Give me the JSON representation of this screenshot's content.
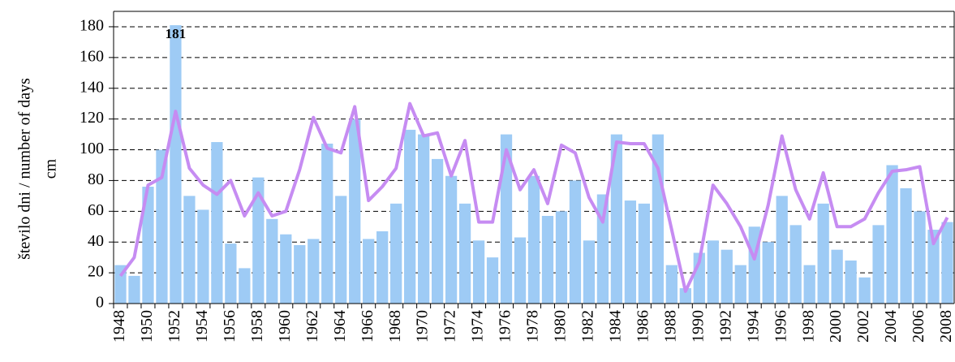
{
  "chart_data": {
    "type": "bar",
    "y_label": [
      "število dni / number of days",
      "cm"
    ],
    "categories": [
      "1948",
      null,
      "1950",
      null,
      "1952",
      null,
      "1954",
      null,
      "1956",
      null,
      "1958",
      null,
      "1960",
      null,
      "1962",
      null,
      "1964",
      null,
      "1966",
      null,
      "1968",
      null,
      "1970",
      null,
      "1972",
      null,
      "1974",
      null,
      "1976",
      null,
      "1978",
      null,
      "1980",
      null,
      "1982",
      null,
      "1984",
      null,
      "1986",
      null,
      "1988",
      null,
      "1990",
      null,
      "1992",
      null,
      "1994",
      null,
      "1996",
      null,
      "1998",
      null,
      "2000",
      null,
      "2002",
      null,
      "2004",
      null,
      "2006",
      null,
      "2008"
    ],
    "series": [
      {
        "type": "bar",
        "color": "#9ecbf5",
        "values": [
          25,
          18,
          76,
          100,
          181,
          70,
          61,
          105,
          39,
          23,
          82,
          55,
          45,
          38,
          42,
          104,
          70,
          120,
          42,
          47,
          65,
          113,
          110,
          94,
          83,
          65,
          41,
          30,
          110,
          43,
          83,
          57,
          60,
          80,
          41,
          71,
          110,
          67,
          65,
          110,
          25,
          10,
          33,
          41,
          35,
          25,
          50,
          40,
          70,
          51,
          25,
          65,
          35,
          28,
          17,
          51,
          90,
          75,
          60,
          48,
          53
        ],
        "value_labels": [
          null,
          null,
          null,
          null,
          "181",
          null,
          null,
          null,
          null,
          null,
          null,
          null,
          null,
          null,
          null,
          null,
          null,
          null,
          null,
          null,
          null,
          null,
          null,
          null,
          null,
          null,
          null,
          null,
          null,
          null,
          null,
          null,
          null,
          null,
          null,
          null,
          null,
          null,
          null,
          null,
          null,
          null,
          null,
          null,
          null,
          null,
          null,
          null,
          null,
          null,
          null,
          null,
          null,
          null,
          null,
          null,
          null,
          null,
          null,
          null,
          null
        ]
      },
      {
        "type": "line",
        "color": "#c68cf2",
        "values": [
          18,
          30,
          77,
          82,
          125,
          88,
          77,
          71,
          80,
          57,
          72,
          57,
          60,
          87,
          121,
          101,
          98,
          128,
          67,
          76,
          88,
          130,
          109,
          111,
          83,
          106,
          53,
          53,
          100,
          74,
          87,
          65,
          103,
          98,
          69,
          53,
          105,
          104,
          104,
          88,
          48,
          8,
          27,
          77,
          65,
          50,
          29,
          64,
          109,
          74,
          55,
          85,
          50,
          50,
          55,
          72,
          86,
          87,
          89,
          39,
          56
        ]
      }
    ],
    "ylim": [
      0,
      190
    ],
    "yticks": [
      0,
      20,
      40,
      60,
      80,
      100,
      120,
      140,
      160,
      180
    ],
    "grid": true
  }
}
